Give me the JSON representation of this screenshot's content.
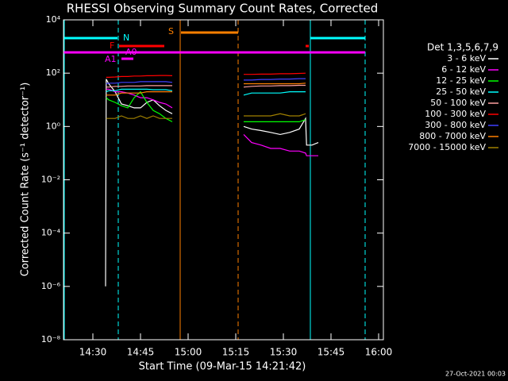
{
  "chart_data": {
    "type": "line",
    "title": "RHESSI Observing Summary Count Rates, Corrected",
    "x_label": "Start Time (09-Mar-15 14:21:42)",
    "y_label": "Corrected Count Rate (s⁻¹ detector⁻¹)",
    "footer": "27-Oct-2021 00:03",
    "legend_title": "Det 1,3,5,6,7,9",
    "legend": "right-outside",
    "log_y": true,
    "flag_labels": [
      "N",
      "F",
      "S",
      "A0",
      "A1"
    ],
    "xlim": [
      20.75,
      121.5
    ],
    "xticks": [
      {
        "value": 30,
        "label": "14:30"
      },
      {
        "value": 45,
        "label": "14:45"
      },
      {
        "value": 60,
        "label": "15:00"
      },
      {
        "value": 75,
        "label": "15:15"
      },
      {
        "value": 90,
        "label": "15:30"
      },
      {
        "value": 105,
        "label": "15:45"
      },
      {
        "value": 120,
        "label": "16:00"
      }
    ],
    "ylim": [
      1e-08,
      10000
    ],
    "yticks": [
      {
        "value": 10000,
        "label": "10⁴"
      },
      {
        "value": 100,
        "label": "10²"
      },
      {
        "value": 1,
        "label": "10⁰"
      },
      {
        "value": 0.01,
        "label": "10⁻²"
      },
      {
        "value": 0.0001,
        "label": "10⁻⁴"
      },
      {
        "value": 1e-06,
        "label": "10⁻⁶"
      },
      {
        "value": 1e-08,
        "label": "10⁻⁸"
      }
    ],
    "x": [
      34,
      34.2,
      35,
      37,
      39,
      41,
      43,
      45,
      47,
      49,
      51,
      53,
      55,
      66,
      77.5,
      80,
      83,
      86,
      89,
      92,
      95,
      97,
      97.3,
      99,
      101
    ],
    "series": [
      {
        "name": "3 - 6 keV",
        "color": "#ffffff",
        "values": [
          1e-06,
          60,
          40,
          20,
          7,
          6,
          5,
          5,
          8,
          10,
          6,
          4,
          3,
          null,
          1,
          0.8,
          0.7,
          0.6,
          0.5,
          0.6,
          0.8,
          2,
          0.2,
          0.2,
          0.25
        ]
      },
      {
        "name": "6 - 12 keV",
        "color": "#ff00ff",
        "values": [
          null,
          25,
          25,
          20,
          20,
          18,
          15,
          12,
          12,
          10,
          8,
          7,
          5,
          null,
          0.5,
          0.25,
          0.2,
          0.15,
          0.15,
          0.12,
          0.12,
          0.1,
          0.08,
          0.08,
          0.08
        ]
      },
      {
        "name": "12 - 25 keV",
        "color": "#00ff00",
        "values": [
          null,
          12,
          10,
          8,
          6,
          5,
          12,
          20,
          8,
          4,
          3,
          2,
          1.5,
          null,
          1.5,
          1.5,
          1.5,
          1.5,
          1.5,
          1.5,
          1.5,
          1.8,
          null,
          null,
          null
        ]
      },
      {
        "name": "25 - 50 keV",
        "color": "#00ffff",
        "values": [
          null,
          20,
          22,
          22,
          25,
          25,
          25,
          25,
          25,
          24,
          24,
          24,
          22,
          null,
          15,
          18,
          18,
          18,
          18,
          20,
          20,
          20,
          null,
          null,
          null
        ]
      },
      {
        "name": "50 - 100 keV",
        "color": "#ffa0a0",
        "values": [
          null,
          30,
          30,
          32,
          32,
          33,
          33,
          33,
          34,
          34,
          34,
          34,
          34,
          null,
          30,
          32,
          33,
          33,
          34,
          34,
          35,
          35,
          null,
          null,
          null
        ]
      },
      {
        "name": "100 - 300 keV",
        "color": "#ff0000",
        "values": [
          null,
          70,
          70,
          72,
          75,
          75,
          78,
          78,
          80,
          80,
          82,
          82,
          80,
          null,
          90,
          90,
          92,
          92,
          95,
          95,
          98,
          100,
          null,
          null,
          null
        ]
      },
      {
        "name": "300 - 800 keV",
        "color": "#4040ff",
        "values": [
          null,
          40,
          42,
          42,
          45,
          45,
          45,
          48,
          48,
          48,
          48,
          48,
          45,
          null,
          55,
          55,
          58,
          58,
          60,
          60,
          62,
          62,
          null,
          null,
          null
        ]
      },
      {
        "name": "800 - 7000 keV",
        "color": "#ff8000",
        "values": [
          null,
          15,
          15,
          15,
          18,
          18,
          18,
          18,
          20,
          20,
          20,
          20,
          20,
          null,
          40,
          40,
          40,
          40,
          40,
          40,
          40,
          42,
          null,
          null,
          null
        ]
      },
      {
        "name": "7000 - 15000 keV",
        "color": "#a08000",
        "values": [
          null,
          2,
          2,
          2,
          2.5,
          2,
          2,
          2.5,
          2,
          2.5,
          2,
          2,
          2,
          null,
          2.5,
          2.5,
          2.5,
          2.5,
          3,
          2.5,
          2.5,
          3,
          null,
          null,
          null
        ]
      }
    ]
  }
}
